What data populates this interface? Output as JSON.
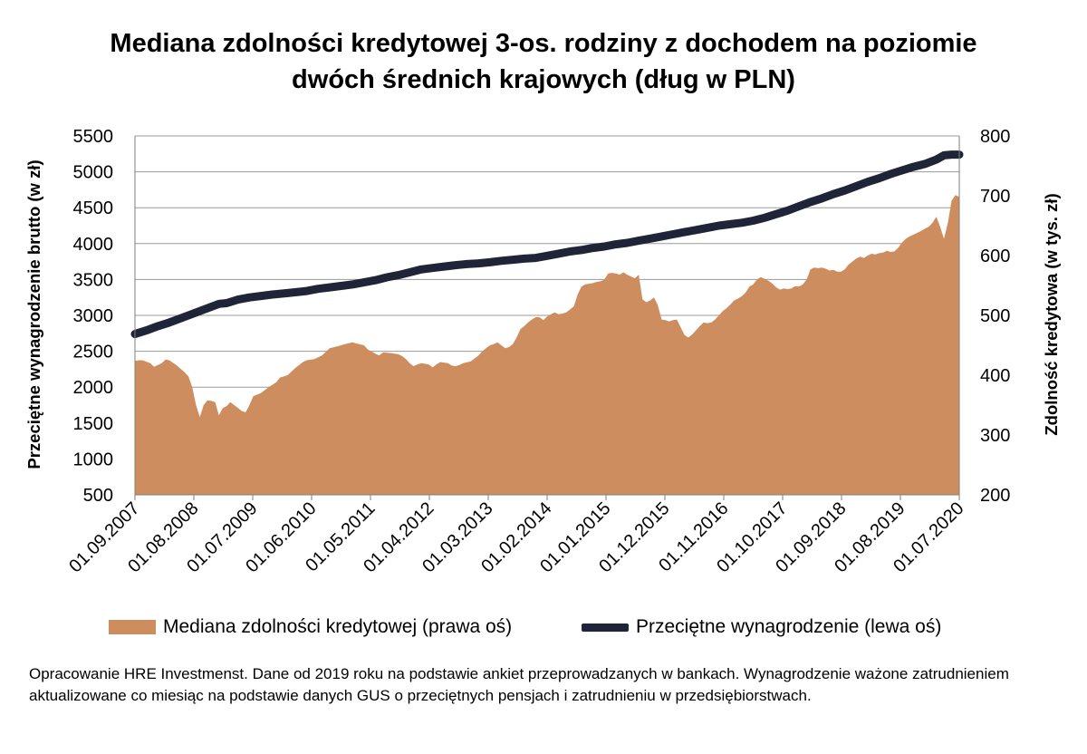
{
  "colors": {
    "area": "#CD8D5E",
    "line": "#1F2438",
    "grid": "#9a9a9a"
  },
  "footnote": "Opracowanie HRE Investmenst. Dane od 2019 roku na podstawie ankiet przeprowadzanych w bankach. Wynagrodzenie ważone zatrudnieniem aktualizowane co miesiąc na podstawie danych GUS o przeciętnych pensjach i zatrudnieniu w przedsiębiorstwach.",
  "chart_data": {
    "type": "area",
    "title": [
      "Mediana zdolności kredytowej 3-os. rodziny z dochodem na poziomie",
      "dwóch średnich krajowych (dług w PLN)"
    ],
    "ylabel_left": "Przeciętne wynagrodzenie brutto (w zł)",
    "ylabel_right": "Zdolność kredytowa (w tys. zł)",
    "ylim_left": [
      500,
      5500
    ],
    "ylim_right": [
      200,
      800
    ],
    "yticks_left": [
      "500",
      "1000",
      "1500",
      "2000",
      "2500",
      "3000",
      "3500",
      "4000",
      "4500",
      "5000",
      "5500"
    ],
    "yticks_right": [
      "200",
      "300",
      "400",
      "500",
      "600",
      "700",
      "800"
    ],
    "xticks": [
      "01.09.2007",
      "01.08.2008",
      "01.07.2009",
      "01.06.2010",
      "01.05.2011",
      "01.04.2012",
      "01.03.2013",
      "01.02.2014",
      "01.01.2015",
      "01.12.2015",
      "01.11.2016",
      "01.10.2017",
      "01.09.2018",
      "01.08.2019",
      "01.07.2020"
    ],
    "grid": true,
    "legend_position": "bottom",
    "series": [
      {
        "name": "Mediana zdolności kredytowej (prawa oś)",
        "axis": "right",
        "kind": "area",
        "points": [
          [
            0,
            424
          ],
          [
            1,
            425
          ],
          [
            2,
            425
          ],
          [
            4,
            420
          ],
          [
            5,
            414
          ],
          [
            7,
            420
          ],
          [
            8,
            426
          ],
          [
            9,
            425
          ],
          [
            11,
            416
          ],
          [
            13,
            405
          ],
          [
            14,
            398
          ],
          [
            15,
            380
          ],
          [
            16,
            350
          ],
          [
            17,
            330
          ],
          [
            18,
            350
          ],
          [
            19,
            358
          ],
          [
            20,
            357
          ],
          [
            21,
            355
          ],
          [
            22,
            333
          ],
          [
            23,
            345
          ],
          [
            24,
            348
          ],
          [
            25,
            355
          ],
          [
            26,
            350
          ],
          [
            27,
            345
          ],
          [
            28,
            340
          ],
          [
            29,
            338
          ],
          [
            30,
            350
          ],
          [
            31,
            365
          ],
          [
            33,
            370
          ],
          [
            35,
            380
          ],
          [
            37,
            388
          ],
          [
            38,
            396
          ],
          [
            40,
            400
          ],
          [
            42,
            412
          ],
          [
            44,
            422
          ],
          [
            45,
            425
          ],
          [
            47,
            427
          ],
          [
            49,
            433
          ],
          [
            51,
            445
          ],
          [
            53,
            448
          ],
          [
            55,
            452
          ],
          [
            57,
            455
          ],
          [
            58,
            453
          ],
          [
            60,
            450
          ],
          [
            61,
            443
          ],
          [
            63,
            436
          ],
          [
            64,
            433
          ],
          [
            65,
            438
          ],
          [
            67,
            437
          ],
          [
            69,
            435
          ],
          [
            70,
            432
          ],
          [
            71,
            427
          ],
          [
            72,
            420
          ],
          [
            73,
            415
          ],
          [
            74,
            418
          ],
          [
            75,
            420
          ],
          [
            77,
            418
          ],
          [
            78,
            413
          ],
          [
            79,
            418
          ],
          [
            80,
            422
          ],
          [
            82,
            420
          ],
          [
            83,
            416
          ],
          [
            84,
            415
          ],
          [
            85,
            417
          ],
          [
            86,
            420
          ],
          [
            88,
            423
          ],
          [
            89,
            428
          ],
          [
            90,
            433
          ],
          [
            91,
            440
          ],
          [
            92,
            445
          ],
          [
            93,
            450
          ],
          [
            94,
            452
          ],
          [
            95,
            455
          ],
          [
            96,
            450
          ],
          [
            97,
            445
          ],
          [
            98,
            447
          ],
          [
            99,
            452
          ],
          [
            100,
            463
          ],
          [
            101,
            477
          ],
          [
            102,
            482
          ],
          [
            103,
            488
          ],
          [
            104,
            493
          ],
          [
            105,
            497
          ],
          [
            106,
            497
          ],
          [
            107,
            492
          ],
          [
            108,
            498
          ],
          [
            109,
            502
          ],
          [
            110,
            505
          ],
          [
            111,
            502
          ],
          [
            112,
            503
          ],
          [
            113,
            505
          ],
          [
            114,
            510
          ],
          [
            115,
            515
          ],
          [
            116,
            535
          ],
          [
            117,
            548
          ],
          [
            118,
            552
          ],
          [
            120,
            554
          ],
          [
            121,
            556
          ],
          [
            122,
            557
          ],
          [
            123,
            560
          ],
          [
            124,
            570
          ],
          [
            125,
            571
          ],
          [
            126,
            570
          ],
          [
            127,
            568
          ],
          [
            128,
            572
          ],
          [
            129,
            568
          ],
          [
            130,
            565
          ],
          [
            131,
            562
          ],
          [
            132,
            568
          ],
          [
            133,
            527
          ],
          [
            134,
            522
          ],
          [
            135,
            525
          ],
          [
            136,
            530
          ],
          [
            137,
            517
          ],
          [
            138,
            493
          ],
          [
            139,
            492
          ],
          [
            140,
            490
          ],
          [
            141,
            492
          ],
          [
            142,
            493
          ],
          [
            143,
            480
          ],
          [
            144,
            467
          ],
          [
            145,
            463
          ],
          [
            146,
            468
          ],
          [
            147,
            475
          ],
          [
            148,
            482
          ],
          [
            149,
            488
          ],
          [
            150,
            487
          ],
          [
            151,
            488
          ],
          [
            152,
            493
          ],
          [
            153,
            500
          ],
          [
            154,
            507
          ],
          [
            155,
            512
          ],
          [
            156,
            518
          ],
          [
            157,
            525
          ],
          [
            158,
            528
          ],
          [
            159,
            532
          ],
          [
            160,
            538
          ],
          [
            161,
            548
          ],
          [
            162,
            552
          ],
          [
            163,
            560
          ],
          [
            164,
            564
          ],
          [
            165,
            561
          ],
          [
            166,
            558
          ],
          [
            167,
            553
          ],
          [
            168,
            547
          ],
          [
            169,
            543
          ],
          [
            170,
            545
          ],
          [
            171,
            544
          ],
          [
            172,
            545
          ],
          [
            173,
            549
          ],
          [
            174,
            548
          ],
          [
            175,
            552
          ],
          [
            176,
            560
          ],
          [
            177,
            577
          ],
          [
            178,
            580
          ],
          [
            179,
            579
          ],
          [
            180,
            580
          ],
          [
            181,
            578
          ],
          [
            182,
            575
          ],
          [
            183,
            576
          ],
          [
            184,
            573
          ],
          [
            185,
            573
          ],
          [
            186,
            577
          ],
          [
            187,
            585
          ],
          [
            188,
            590
          ],
          [
            189,
            595
          ],
          [
            190,
            598
          ],
          [
            191,
            596
          ],
          [
            192,
            600
          ],
          [
            193,
            603
          ],
          [
            194,
            602
          ],
          [
            195,
            604
          ],
          [
            196,
            605
          ],
          [
            197,
            608
          ],
          [
            198,
            606
          ],
          [
            199,
            607
          ],
          [
            200,
            613
          ],
          [
            201,
            622
          ],
          [
            202,
            628
          ],
          [
            203,
            632
          ],
          [
            204,
            635
          ],
          [
            205,
            638
          ],
          [
            206,
            641
          ],
          [
            207,
            645
          ],
          [
            208,
            648
          ],
          [
            209,
            655
          ],
          [
            210,
            665
          ],
          [
            211,
            648
          ],
          [
            212,
            628
          ],
          [
            213,
            655
          ],
          [
            214,
            692
          ],
          [
            215,
            701
          ],
          [
            216,
            698
          ]
        ]
      },
      {
        "name": "Przeciętne wynagrodzenie (lewa oś)",
        "axis": "left",
        "kind": "line",
        "points": [
          [
            0,
            2740
          ],
          [
            3,
            2790
          ],
          [
            6,
            2850
          ],
          [
            9,
            2900
          ],
          [
            12,
            2960
          ],
          [
            15,
            3020
          ],
          [
            18,
            3080
          ],
          [
            21,
            3140
          ],
          [
            22,
            3160
          ],
          [
            24,
            3170
          ],
          [
            27,
            3220
          ],
          [
            30,
            3250
          ],
          [
            33,
            3270
          ],
          [
            36,
            3290
          ],
          [
            40,
            3310
          ],
          [
            45,
            3340
          ],
          [
            48,
            3370
          ],
          [
            51,
            3390
          ],
          [
            54,
            3410
          ],
          [
            57,
            3430
          ],
          [
            60,
            3460
          ],
          [
            63,
            3490
          ],
          [
            66,
            3530
          ],
          [
            69,
            3560
          ],
          [
            72,
            3600
          ],
          [
            75,
            3640
          ],
          [
            78,
            3660
          ],
          [
            81,
            3680
          ],
          [
            84,
            3700
          ],
          [
            87,
            3715
          ],
          [
            90,
            3725
          ],
          [
            93,
            3740
          ],
          [
            96,
            3760
          ],
          [
            99,
            3775
          ],
          [
            102,
            3790
          ],
          [
            105,
            3800
          ],
          [
            108,
            3830
          ],
          [
            111,
            3860
          ],
          [
            114,
            3890
          ],
          [
            117,
            3910
          ],
          [
            120,
            3940
          ],
          [
            123,
            3960
          ],
          [
            126,
            3990
          ],
          [
            129,
            4010
          ],
          [
            132,
            4040
          ],
          [
            135,
            4070
          ],
          [
            138,
            4100
          ],
          [
            141,
            4130
          ],
          [
            144,
            4160
          ],
          [
            147,
            4190
          ],
          [
            150,
            4220
          ],
          [
            153,
            4250
          ],
          [
            156,
            4270
          ],
          [
            159,
            4290
          ],
          [
            162,
            4320
          ],
          [
            165,
            4360
          ],
          [
            168,
            4410
          ],
          [
            171,
            4460
          ],
          [
            174,
            4520
          ],
          [
            177,
            4580
          ],
          [
            180,
            4630
          ],
          [
            183,
            4690
          ],
          [
            186,
            4740
          ],
          [
            189,
            4800
          ],
          [
            192,
            4860
          ],
          [
            195,
            4910
          ],
          [
            198,
            4970
          ],
          [
            201,
            5020
          ],
          [
            204,
            5070
          ],
          [
            207,
            5110
          ],
          [
            210,
            5170
          ],
          [
            212,
            5230
          ],
          [
            214,
            5240
          ],
          [
            216,
            5240
          ]
        ]
      }
    ]
  }
}
